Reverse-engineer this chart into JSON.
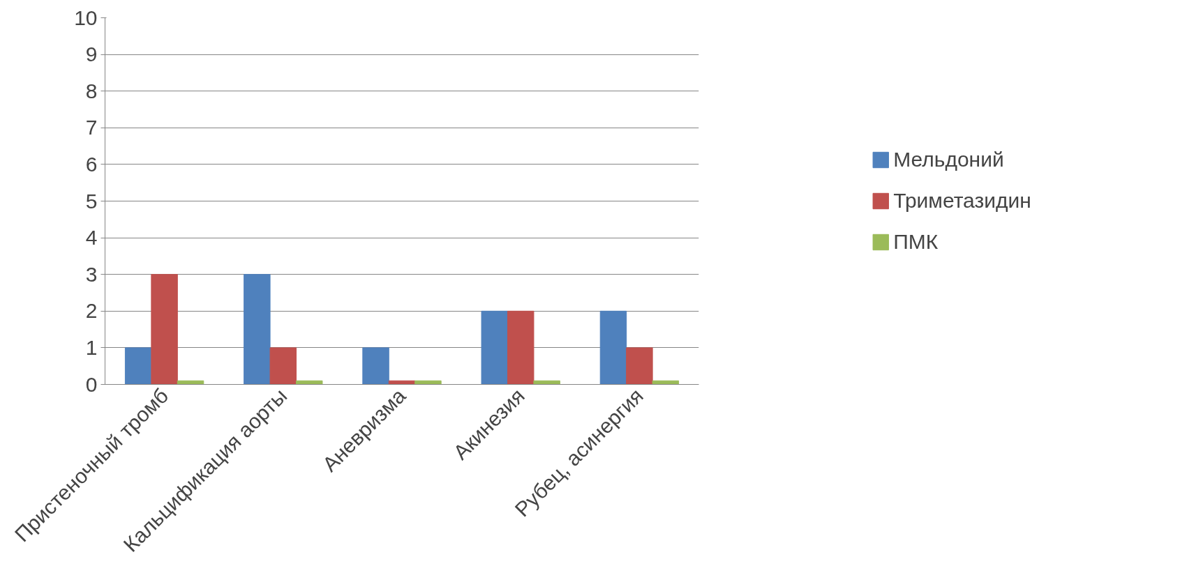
{
  "chart_data": {
    "type": "bar",
    "categories": [
      "Пристеночный тромб",
      "Кальцификация аорты",
      "Аневризма",
      "Акинезия",
      "Рубец, асинергия"
    ],
    "series": [
      {
        "name": "Мельдоний",
        "color": "#4f81bd",
        "values": [
          1,
          3,
          1,
          2,
          2
        ]
      },
      {
        "name": "Триметазидин",
        "color": "#c0504d",
        "values": [
          3,
          1,
          0.1,
          2,
          1
        ]
      },
      {
        "name": "ПМК",
        "color": "#9bbb59",
        "values": [
          0.1,
          0.1,
          0.1,
          0.1,
          0.1
        ]
      }
    ],
    "ylim": [
      0,
      10
    ],
    "yticks": [
      0,
      1,
      2,
      3,
      4,
      5,
      6,
      7,
      8,
      9,
      10
    ],
    "grid": "y",
    "legend": "right"
  }
}
